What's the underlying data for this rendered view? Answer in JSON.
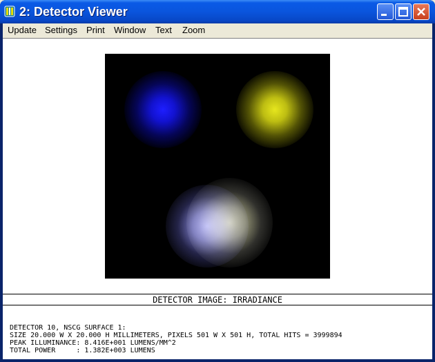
{
  "window": {
    "title": "2: Detector Viewer",
    "icon": "zemax-app-icon",
    "controls": [
      "minimize-icon",
      "maximize-icon",
      "close-icon"
    ]
  },
  "menu": {
    "items": [
      "Update",
      "Settings",
      "Print",
      "Window",
      "Text",
      "Zoom"
    ]
  },
  "detector_image": {
    "caption": "DETECTOR IMAGE: IRRADIANCE",
    "spots": [
      {
        "color": "#1e1eff"
      },
      {
        "color": "#e6e61e"
      },
      {
        "color": "#aaaaff"
      },
      {
        "color": "#e6e6b4"
      }
    ]
  },
  "info": {
    "line1": "DETECTOR 10, NSCG SURFACE 1:",
    "line2": "SIZE 20.000 W X 20.000 H MILLIMETERS, PIXELS 501 W X 501 H, TOTAL HITS = 3999894",
    "line3": "PEAK ILLUMINANCE: 8.416E+001 LUMENS/MM^2",
    "line4": "TOTAL POWER     : 1.382E+003 LUMENS"
  }
}
